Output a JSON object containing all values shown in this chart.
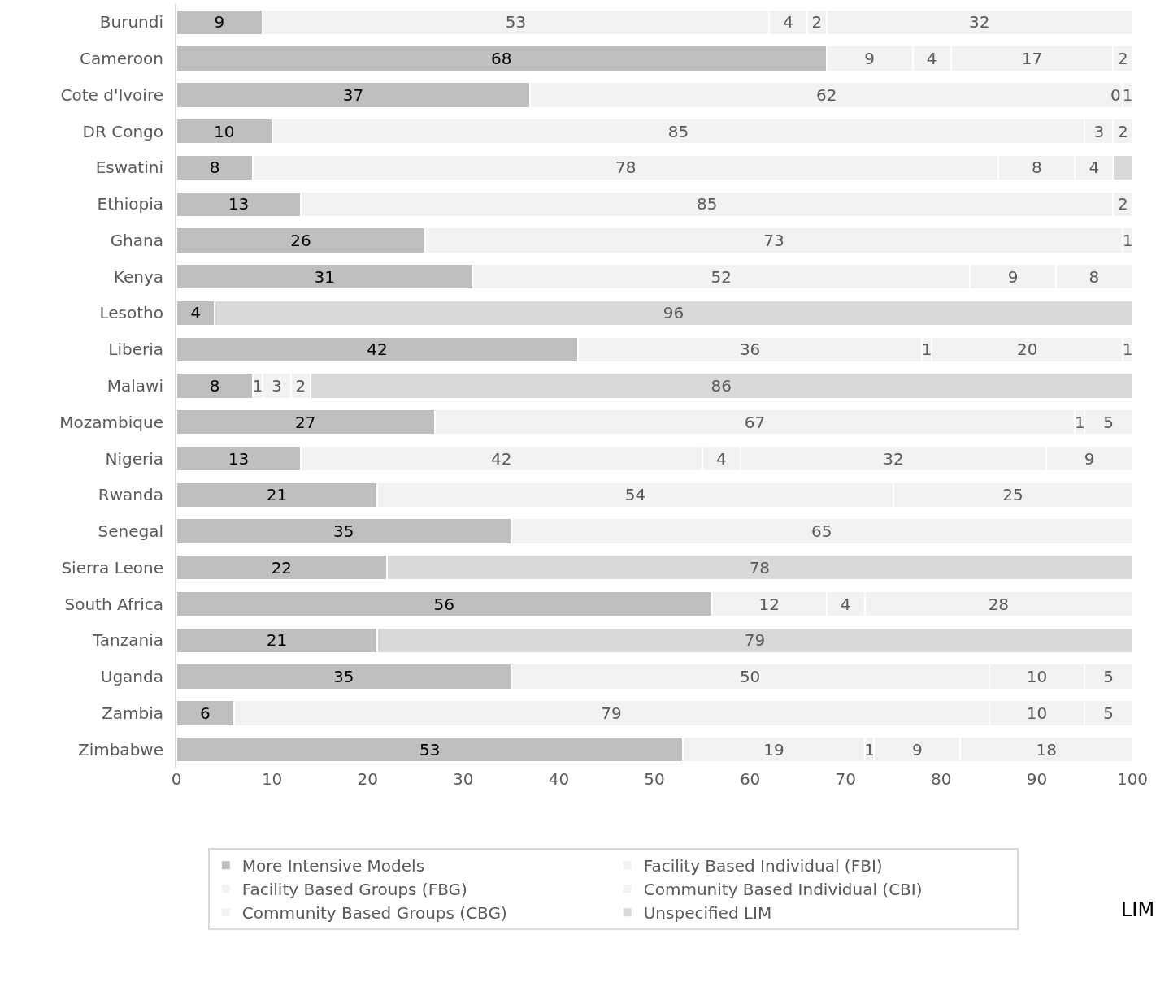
{
  "chart_data": {
    "type": "bar",
    "orientation": "horizontal",
    "stacked": true,
    "categories": [
      "Burundi",
      "Cameroon",
      "Cote d'Ivoire",
      "DR Congo",
      "Eswatini",
      "Ethiopia",
      "Ghana",
      "Kenya",
      "Lesotho",
      "Liberia",
      "Malawi",
      "Mozambique",
      "Nigeria",
      "Rwanda",
      "Senegal",
      "Sierra Leone",
      "South Africa",
      "Tanzania",
      "Uganda",
      "Zambia",
      "Zimbabwe"
    ],
    "series": [
      {
        "name": "More Intensive Models",
        "color": "#bfbfbf",
        "values": [
          9,
          68,
          37,
          10,
          8,
          13,
          26,
          31,
          4,
          42,
          8,
          27,
          13,
          21,
          35,
          22,
          56,
          21,
          35,
          6,
          53
        ],
        "value_labels": [
          "9",
          "68",
          "37",
          "10",
          "8",
          "13",
          "26",
          "31",
          "4",
          "42",
          "8",
          "27",
          "13",
          "21",
          "35",
          "22",
          "56",
          "21",
          "35",
          "6",
          "53"
        ]
      },
      {
        "name": "Facility Based Individual (FBI)",
        "color": "#f2f2f2",
        "values": [
          53,
          9,
          62,
          85,
          78,
          85,
          73,
          52,
          null,
          36,
          1,
          67,
          42,
          54,
          65,
          null,
          12,
          null,
          50,
          79,
          19
        ],
        "value_labels": [
          "53",
          "9",
          "62",
          "85",
          "78",
          "85",
          "73",
          "52",
          null,
          "36",
          "1",
          "67",
          "42",
          "54",
          "65",
          null,
          "12",
          null,
          "50",
          "79",
          "19"
        ]
      },
      {
        "name": "Facility Based Groups (FBG)",
        "color": "#f2f2f2",
        "values": [
          4,
          4,
          0,
          3,
          8,
          2,
          1,
          9,
          null,
          1,
          3,
          1,
          4,
          25,
          null,
          null,
          4,
          null,
          10,
          10,
          1
        ],
        "value_labels": [
          "4",
          "4",
          "0",
          "3",
          "8",
          "2",
          "1",
          "9",
          null,
          "1",
          "3",
          "1",
          "4",
          "25",
          null,
          null,
          "4",
          null,
          "10",
          "10",
          "1"
        ]
      },
      {
        "name": "Community Based Individual (CBI)",
        "color": "#f2f2f2",
        "values": [
          2,
          17,
          1,
          2,
          4,
          null,
          null,
          8,
          null,
          20,
          2,
          5,
          32,
          null,
          null,
          null,
          28,
          null,
          5,
          5,
          9
        ],
        "value_labels": [
          "2",
          "17",
          "1",
          "2",
          "4",
          null,
          null,
          "8",
          null,
          "20",
          "2",
          "5",
          "32",
          null,
          null,
          null,
          "28",
          null,
          "5",
          "5",
          "9"
        ]
      },
      {
        "name": "Community Based Groups (CBG)",
        "color": "#f2f2f2",
        "values": [
          32,
          2,
          null,
          null,
          null,
          null,
          null,
          null,
          null,
          1,
          null,
          null,
          9,
          null,
          null,
          null,
          null,
          null,
          null,
          null,
          18
        ],
        "value_labels": [
          "32",
          "2",
          null,
          null,
          null,
          null,
          null,
          null,
          null,
          "1",
          null,
          null,
          "9",
          null,
          null,
          null,
          null,
          null,
          null,
          null,
          "18"
        ]
      },
      {
        "name": "Unspecified LIM",
        "color": "#d9d9d9",
        "values": [
          null,
          null,
          null,
          null,
          2,
          null,
          null,
          null,
          96,
          null,
          86,
          null,
          null,
          null,
          null,
          78,
          null,
          79,
          null,
          null,
          null
        ],
        "value_labels": [
          null,
          null,
          null,
          null,
          null,
          null,
          null,
          null,
          "96",
          null,
          "86",
          null,
          null,
          null,
          null,
          "78",
          null,
          "79",
          null,
          null,
          null
        ]
      }
    ],
    "xlim": [
      0,
      100
    ],
    "xticks": [
      0,
      10,
      20,
      30,
      40,
      50,
      60,
      70,
      80,
      90,
      100
    ],
    "legend": "bottom",
    "annotations": [
      {
        "text": "LIM"
      }
    ]
  }
}
